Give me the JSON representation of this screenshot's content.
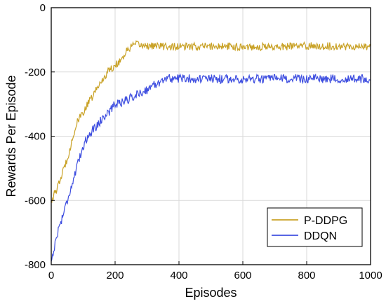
{
  "chart_data": {
    "type": "line",
    "title": "",
    "xlabel": "Episodes",
    "ylabel": "Rewards Per Episode",
    "xlim": [
      0,
      1000
    ],
    "ylim": [
      -800,
      0
    ],
    "xticks": [
      0,
      200,
      400,
      600,
      800,
      1000
    ],
    "yticks": [
      0,
      -200,
      -400,
      -600,
      -800
    ],
    "grid": true,
    "legend_position": "bottom-right",
    "series": [
      {
        "name": "P-DDPG",
        "color": "#C9A227",
        "noise": 12,
        "x": [
          0,
          20,
          50,
          80,
          100,
          130,
          150,
          180,
          200,
          220,
          240,
          260,
          300,
          400,
          500,
          600,
          700,
          800,
          900,
          1000
        ],
        "values": [
          -600,
          -560,
          -470,
          -360,
          -325,
          -275,
          -240,
          -195,
          -180,
          -160,
          -130,
          -115,
          -118,
          -122,
          -120,
          -121,
          -122,
          -119,
          -120,
          -122
        ]
      },
      {
        "name": "DDQN",
        "color": "#3F4FE0",
        "noise": 14,
        "x": [
          0,
          20,
          50,
          80,
          100,
          120,
          140,
          160,
          180,
          200,
          230,
          260,
          300,
          340,
          360,
          400,
          500,
          600,
          700,
          800,
          900,
          1000
        ],
        "values": [
          -790,
          -700,
          -600,
          -500,
          -430,
          -390,
          -370,
          -345,
          -325,
          -300,
          -290,
          -275,
          -255,
          -230,
          -220,
          -220,
          -222,
          -222,
          -222,
          -221,
          -221,
          -223
        ]
      }
    ]
  }
}
